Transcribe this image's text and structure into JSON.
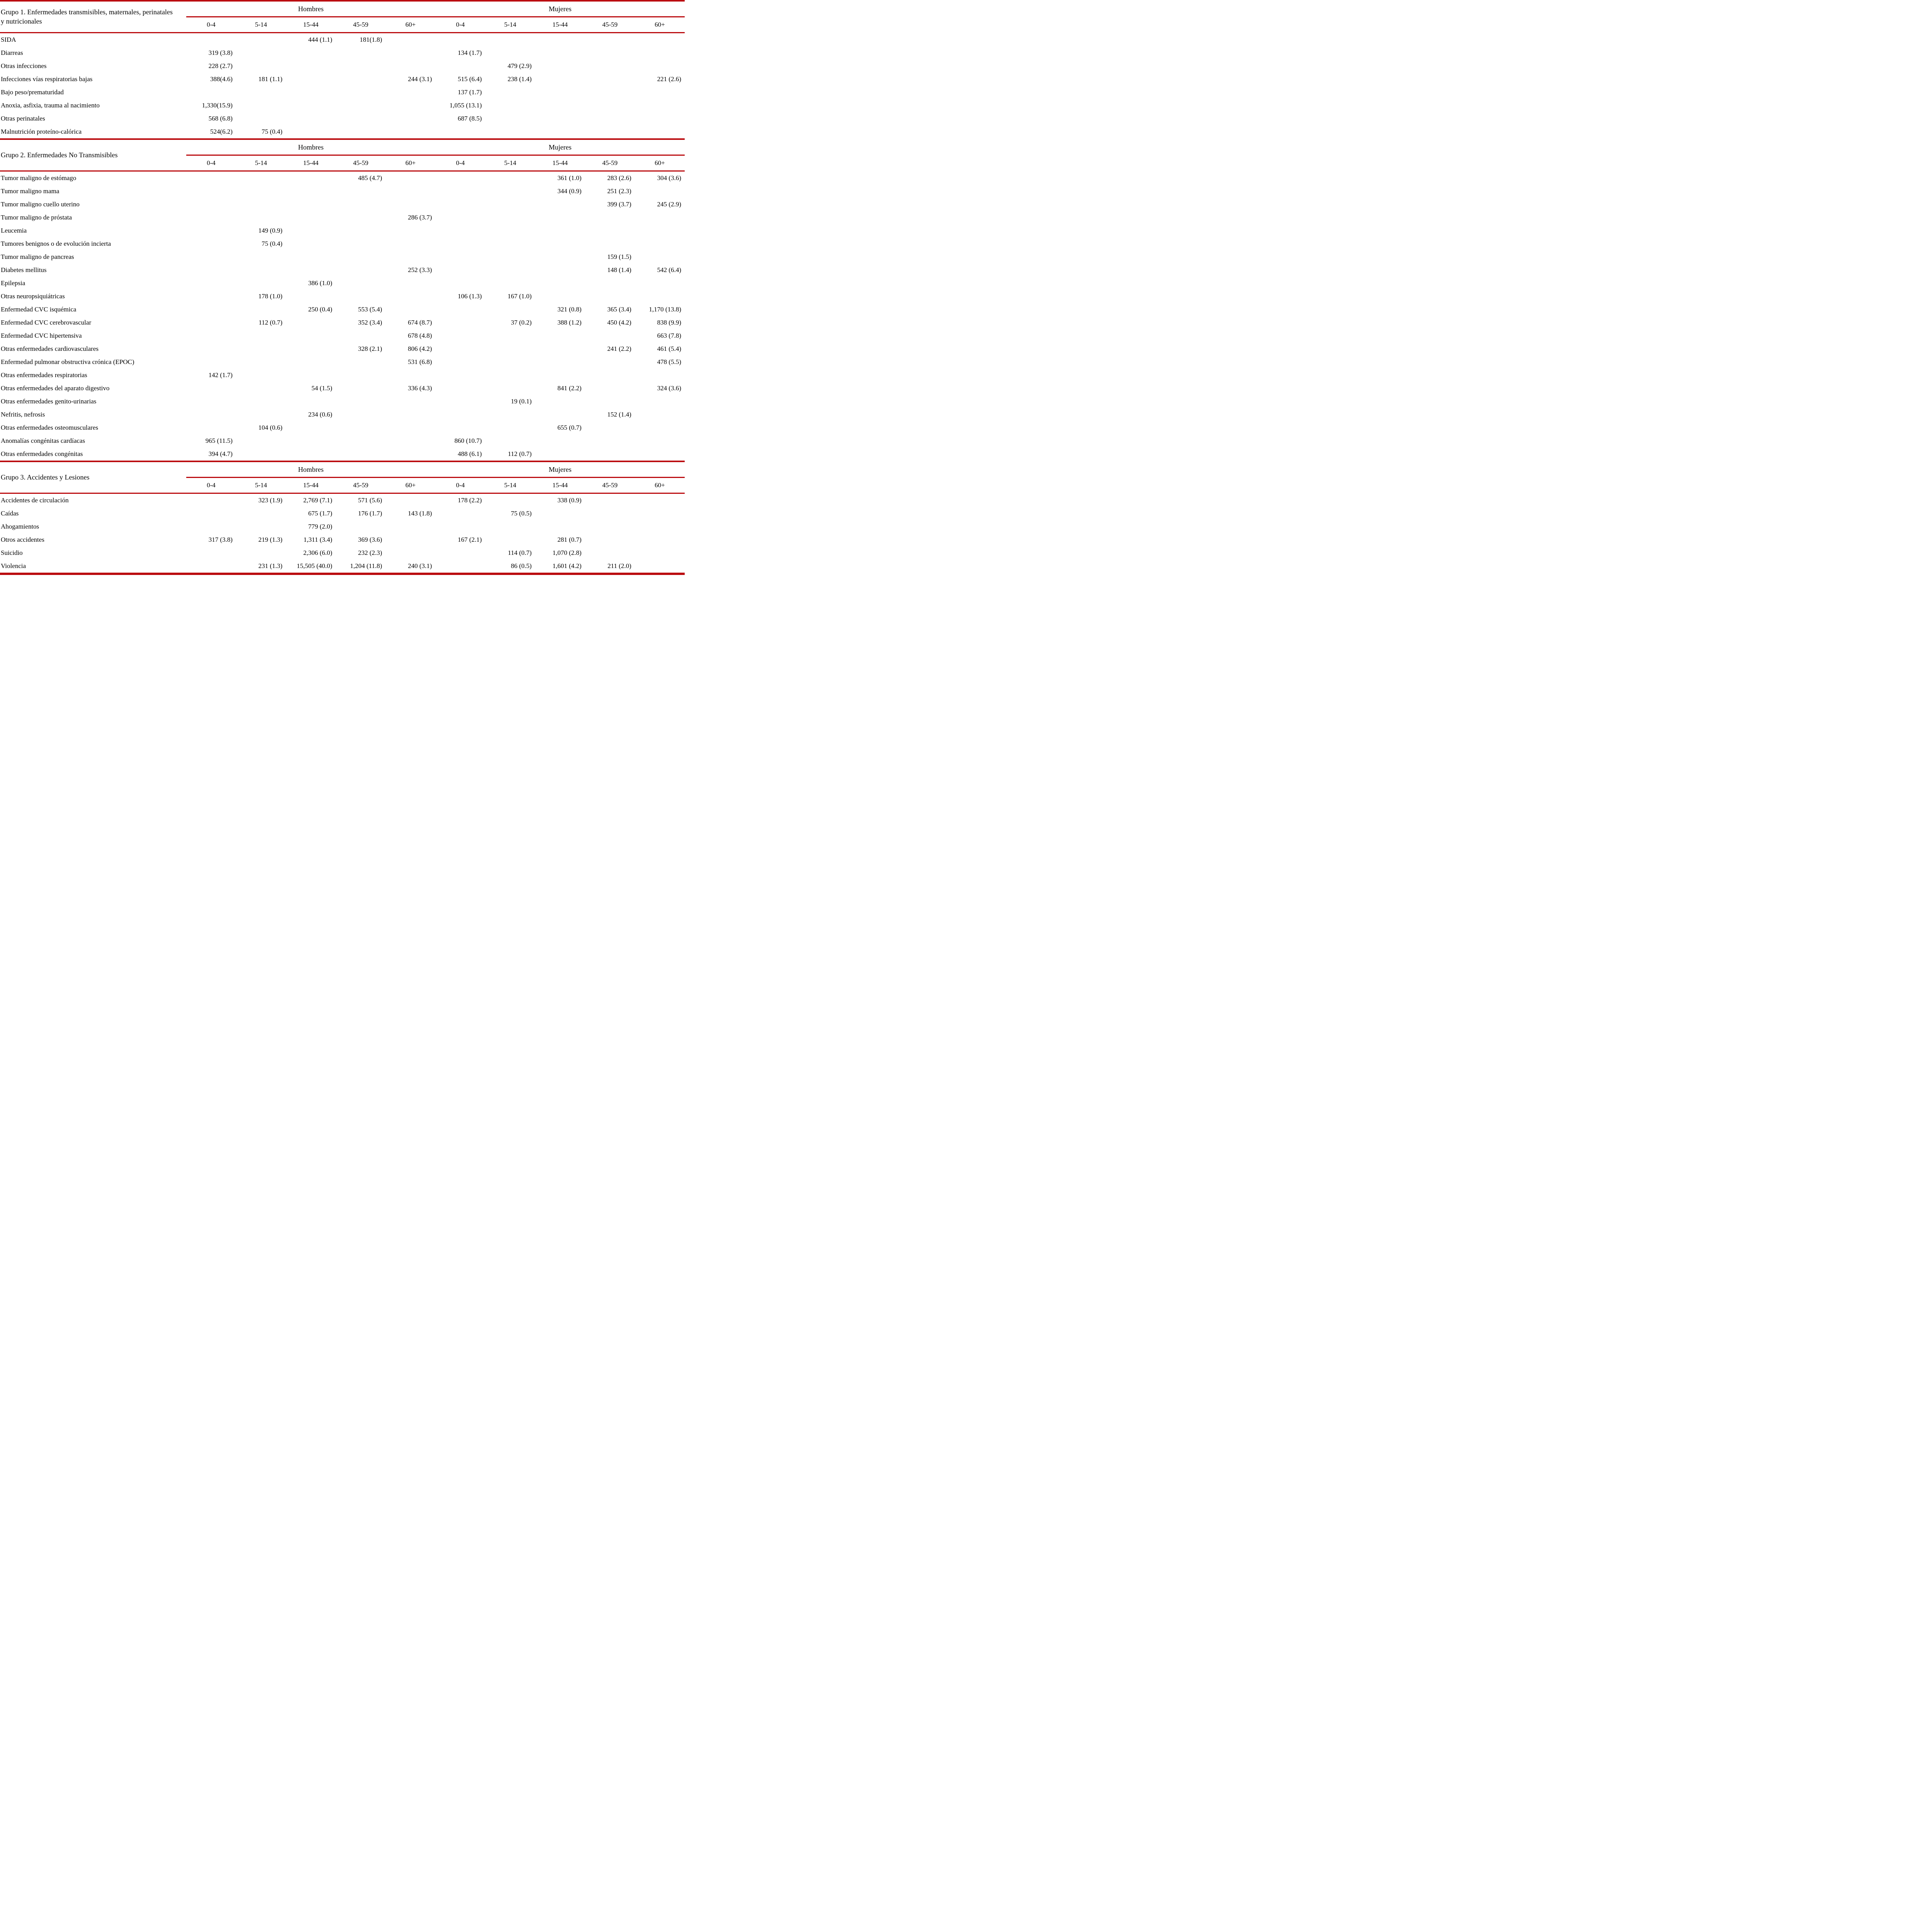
{
  "accent_red": "#bb0c10",
  "header": {
    "hombres": "Hombres",
    "mujeres": "Mujeres",
    "ages": [
      "0-4",
      "5-14",
      "15-44",
      "45-59",
      "60+"
    ]
  },
  "groups": [
    {
      "title": "Grupo 1. Enfermedades transmisibles, maternales, perinatales y nutricionales",
      "rows": [
        {
          "label": "SIDA",
          "values": [
            "",
            "",
            "444 (1.1)",
            "181(1.8)",
            "",
            "",
            "",
            "",
            "",
            ""
          ]
        },
        {
          "label": "Diarreas",
          "values": [
            "319 (3.8)",
            "",
            "",
            "",
            "",
            "134 (1.7)",
            "",
            "",
            "",
            ""
          ]
        },
        {
          "label": "Otras infecciones",
          "values": [
            "228 (2.7)",
            "",
            "",
            "",
            "",
            "",
            "479 (2.9)",
            "",
            "",
            ""
          ]
        },
        {
          "label": "Infecciones vías respiratorias bajas",
          "values": [
            "388(4.6)",
            "181 (1.1)",
            "",
            "",
            "244 (3.1)",
            "515 (6.4)",
            "238 (1.4)",
            "",
            "",
            "221 (2.6)"
          ]
        },
        {
          "label": "Bajo peso/prematuridad",
          "values": [
            "",
            "",
            "",
            "",
            "",
            "137 (1.7)",
            "",
            "",
            "",
            ""
          ]
        },
        {
          "label": "Anoxia, asfixia, trauma al nacimiento",
          "values": [
            "1,330(15.9)",
            "",
            "",
            "",
            "",
            "1,055 (13.1)",
            "",
            "",
            "",
            ""
          ]
        },
        {
          "label": "Otras perinatales",
          "values": [
            "568 (6.8)",
            "",
            "",
            "",
            "",
            "687 (8.5)",
            "",
            "",
            "",
            ""
          ]
        },
        {
          "label": "Malnutrición proteíno-calórica",
          "values": [
            "524(6.2)",
            "75 (0.4)",
            "",
            "",
            "",
            "",
            "",
            "",
            "",
            ""
          ]
        }
      ]
    },
    {
      "title": "Grupo 2. Enfermedades No Transmisibles",
      "rows": [
        {
          "label": "Tumor maligno de estómago",
          "values": [
            "",
            "",
            "",
            "485 (4.7)",
            "",
            "",
            "",
            "361 (1.0)",
            "283 (2.6)",
            "304 (3.6)"
          ]
        },
        {
          "label": "Tumor maligno mama",
          "values": [
            "",
            "",
            "",
            "",
            "",
            "",
            "",
            "344 (0.9)",
            "251 (2.3)",
            ""
          ]
        },
        {
          "label": "Tumor maligno cuello uterino",
          "values": [
            "",
            "",
            "",
            "",
            "",
            "",
            "",
            "",
            "399 (3.7)",
            "245 (2.9)"
          ]
        },
        {
          "label": "Tumor maligno de próstata",
          "values": [
            "",
            "",
            "",
            "",
            "286 (3.7)",
            "",
            "",
            "",
            "",
            ""
          ]
        },
        {
          "label": "Leucemia",
          "values": [
            "",
            "149 (0.9)",
            "",
            "",
            "",
            "",
            "",
            "",
            "",
            ""
          ]
        },
        {
          "label": "Tumores benignos o de evolución incierta",
          "values": [
            "",
            "75 (0.4)",
            "",
            "",
            "",
            "",
            "",
            "",
            "",
            ""
          ]
        },
        {
          "label": "Tumor maligno de pancreas",
          "values": [
            "",
            "",
            "",
            "",
            "",
            "",
            "",
            "",
            "159 (1.5)",
            ""
          ]
        },
        {
          "label": "Diabetes mellitus",
          "values": [
            "",
            "",
            "",
            "",
            "252 (3.3)",
            "",
            "",
            "",
            "148 (1.4)",
            "542 (6.4)"
          ]
        },
        {
          "label": "Epilepsia",
          "values": [
            "",
            "",
            "386 (1.0)",
            "",
            "",
            "",
            "",
            "",
            "",
            ""
          ]
        },
        {
          "label": "Otras neuropsiquiátricas",
          "values": [
            "",
            "178 (1.0)",
            "",
            "",
            "",
            "106 (1.3)",
            "167 (1.0)",
            "",
            "",
            ""
          ]
        },
        {
          "label": "Enfermedad CVC isquémica",
          "values": [
            "",
            "",
            "250 (0.4)",
            "553 (5.4)",
            "",
            "",
            "",
            "321 (0.8)",
            "365 (3.4)",
            "1,170 (13.8)"
          ]
        },
        {
          "label": "Enfermedad CVC cerebrovascular",
          "values": [
            "",
            "112 (0.7)",
            "",
            "352 (3.4)",
            "674 (8.7)",
            "",
            "37 (0.2)",
            "388 (1.2)",
            "450 (4.2)",
            "838 (9.9)"
          ]
        },
        {
          "label": "Enfermedad CVC hipertensiva",
          "values": [
            "",
            "",
            "",
            "",
            "678 (4.8)",
            "",
            "",
            "",
            "",
            "663 (7.8)"
          ]
        },
        {
          "label": "Otras enfermedades cardiovasculares",
          "values": [
            "",
            "",
            "",
            "328 (2.1)",
            "806 (4.2)",
            "",
            "",
            "",
            "241 (2.2)",
            "461 (5.4)"
          ]
        },
        {
          "label": "Enfermedad pulmonar obstructiva crónica (EPOC)",
          "values": [
            "",
            "",
            "",
            "",
            "531 (6.8)",
            "",
            "",
            "",
            "",
            "478 (5.5)"
          ]
        },
        {
          "label": "Otras enfermedades respiratorias",
          "values": [
            "142 (1.7)",
            "",
            "",
            "",
            "",
            "",
            "",
            "",
            "",
            ""
          ]
        },
        {
          "label": "Otras enfermedades del aparato digestivo",
          "values": [
            "",
            "",
            "54 (1.5)",
            "",
            "336 (4.3)",
            "",
            "",
            "841 (2.2)",
            "",
            "324 (3.6)"
          ]
        },
        {
          "label": "Otras enfermedades genito-urinarias",
          "values": [
            "",
            "",
            "",
            "",
            "",
            "",
            "19 (0.1)",
            "",
            "",
            ""
          ]
        },
        {
          "label": "Nefritis, nefrosis",
          "values": [
            "",
            "",
            "234 (0.6)",
            "",
            "",
            "",
            "",
            "",
            "152 (1.4)",
            ""
          ]
        },
        {
          "label": "Otras enfermedades osteomusculares",
          "values": [
            "",
            "104 (0.6)",
            "",
            "",
            "",
            "",
            "",
            "655 (0.7)",
            "",
            ""
          ]
        },
        {
          "label": "Anomalías congénitas cardíacas",
          "values": [
            "965 (11.5)",
            "",
            "",
            "",
            "",
            "860 (10.7)",
            "",
            "",
            "",
            ""
          ]
        },
        {
          "label": "Otras enfermedades congénitas",
          "values": [
            "394 (4.7)",
            "",
            "",
            "",
            "",
            "488 (6.1)",
            "112 (0.7)",
            "",
            "",
            ""
          ]
        }
      ]
    },
    {
      "title": "Grupo 3. Accidentes y Lesiones",
      "rows": [
        {
          "label": "Accidentes de circulación",
          "values": [
            "",
            "323 (1.9)",
            "2,769 (7.1)",
            "571 (5.6)",
            "",
            "178 (2.2)",
            "",
            "338 (0.9)",
            "",
            ""
          ]
        },
        {
          "label": "Caídas",
          "values": [
            "",
            "",
            "675 (1.7)",
            "176 (1.7)",
            "143 (1.8)",
            "",
            "75 (0.5)",
            "",
            "",
            ""
          ]
        },
        {
          "label": "Ahogamientos",
          "values": [
            "",
            "",
            "779 (2.0)",
            "",
            "",
            "",
            "",
            "",
            "",
            ""
          ]
        },
        {
          "label": "Otros accidentes",
          "values": [
            "317 (3.8)",
            "219 (1.3)",
            "1,311 (3.4)",
            "369 (3.6)",
            "",
            "167 (2.1)",
            "",
            "281 (0.7)",
            "",
            ""
          ]
        },
        {
          "label": "Suicidio",
          "values": [
            "",
            "",
            "2,306 (6.0)",
            "232 (2.3)",
            "",
            "",
            "114 (0.7)",
            "1,070 (2.8)",
            "",
            ""
          ]
        },
        {
          "label": "Violencia",
          "values": [
            "",
            "231 (1.3)",
            "15,505 (40.0)",
            "1,204 (11.8)",
            "240 (3.1)",
            "",
            "86 (0.5)",
            "1,601 (4.2)",
            "211 (2.0)",
            ""
          ]
        }
      ]
    }
  ]
}
